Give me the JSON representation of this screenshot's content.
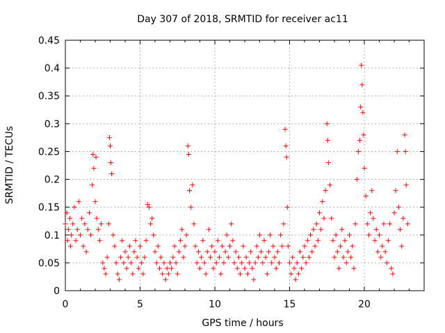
{
  "chart_data": {
    "type": "scatter",
    "title": "Day 307 of 2018, SRMTID for receiver ac11",
    "xlabel": "GPS time / hours",
    "ylabel": "SRMTID / TECUs",
    "xlim": [
      0,
      24
    ],
    "ylim": [
      0,
      0.45
    ],
    "x_ticks": [
      0,
      5,
      10,
      15,
      20
    ],
    "y_ticks": [
      0,
      0.05,
      0.1,
      0.15,
      0.2,
      0.25,
      0.3,
      0.35,
      0.4,
      0.45
    ],
    "x_tick_labels": [
      "0",
      "5",
      "10",
      "15",
      "20"
    ],
    "y_tick_labels": [
      "0",
      "0.05",
      "0.1",
      "0.15",
      "0.2",
      "0.25",
      "0.3",
      "0.35",
      "0.4",
      "0.45"
    ],
    "grid": true,
    "marker": "+",
    "color": "#ff0000",
    "series": [
      {
        "name": "SRMTID",
        "points": [
          [
            0.0,
            0.12
          ],
          [
            0.1,
            0.14
          ],
          [
            0.15,
            0.09
          ],
          [
            0.2,
            0.11
          ],
          [
            0.3,
            0.13
          ],
          [
            0.35,
            0.08
          ],
          [
            0.4,
            0.1
          ],
          [
            0.5,
            0.12
          ],
          [
            0.6,
            0.15
          ],
          [
            0.7,
            0.09
          ],
          [
            0.8,
            0.11
          ],
          [
            0.9,
            0.16
          ],
          [
            1.0,
            0.1
          ],
          [
            1.1,
            0.13
          ],
          [
            1.2,
            0.08
          ],
          [
            1.3,
            0.12
          ],
          [
            1.4,
            0.07
          ],
          [
            1.5,
            0.11
          ],
          [
            1.6,
            0.14
          ],
          [
            1.7,
            0.1
          ],
          [
            1.8,
            0.19
          ],
          [
            1.85,
            0.245
          ],
          [
            1.9,
            0.22
          ],
          [
            2.0,
            0.16
          ],
          [
            2.05,
            0.24
          ],
          [
            2.1,
            0.13
          ],
          [
            2.2,
            0.11
          ],
          [
            2.3,
            0.09
          ],
          [
            2.4,
            0.12
          ],
          [
            2.5,
            0.05
          ],
          [
            2.6,
            0.04
          ],
          [
            2.7,
            0.03
          ],
          [
            2.8,
            0.06
          ],
          [
            2.9,
            0.12
          ],
          [
            2.95,
            0.275
          ],
          [
            3.0,
            0.26
          ],
          [
            3.05,
            0.23
          ],
          [
            3.1,
            0.21
          ],
          [
            3.2,
            0.1
          ],
          [
            3.3,
            0.08
          ],
          [
            3.4,
            0.05
          ],
          [
            3.5,
            0.03
          ],
          [
            3.6,
            0.02
          ],
          [
            3.7,
            0.06
          ],
          [
            3.8,
            0.09
          ],
          [
            3.9,
            0.05
          ],
          [
            4.0,
            0.07
          ],
          [
            4.1,
            0.04
          ],
          [
            4.2,
            0.06
          ],
          [
            4.3,
            0.08
          ],
          [
            4.4,
            0.05
          ],
          [
            4.5,
            0.03
          ],
          [
            4.6,
            0.07
          ],
          [
            4.7,
            0.09
          ],
          [
            4.8,
            0.06
          ],
          [
            4.9,
            0.04
          ],
          [
            5.0,
            0.08
          ],
          [
            5.1,
            0.05
          ],
          [
            5.2,
            0.03
          ],
          [
            5.3,
            0.06
          ],
          [
            5.4,
            0.09
          ],
          [
            5.5,
            0.155
          ],
          [
            5.6,
            0.15
          ],
          [
            5.7,
            0.12
          ],
          [
            5.8,
            0.13
          ],
          [
            5.9,
            0.1
          ],
          [
            6.0,
            0.07
          ],
          [
            6.1,
            0.05
          ],
          [
            6.2,
            0.08
          ],
          [
            6.3,
            0.04
          ],
          [
            6.4,
            0.06
          ],
          [
            6.5,
            0.03
          ],
          [
            6.6,
            0.05
          ],
          [
            6.7,
            0.02
          ],
          [
            6.8,
            0.04
          ],
          [
            6.9,
            0.03
          ],
          [
            7.0,
            0.05
          ],
          [
            7.1,
            0.04
          ],
          [
            7.2,
            0.06
          ],
          [
            7.3,
            0.08
          ],
          [
            7.4,
            0.05
          ],
          [
            7.5,
            0.03
          ],
          [
            7.6,
            0.07
          ],
          [
            7.7,
            0.09
          ],
          [
            7.8,
            0.11
          ],
          [
            7.9,
            0.06
          ],
          [
            8.0,
            0.08
          ],
          [
            8.1,
            0.1
          ],
          [
            8.2,
            0.26
          ],
          [
            8.25,
            0.245
          ],
          [
            8.3,
            0.18
          ],
          [
            8.4,
            0.15
          ],
          [
            8.5,
            0.19
          ],
          [
            8.6,
            0.12
          ],
          [
            8.7,
            0.08
          ],
          [
            8.8,
            0.05
          ],
          [
            8.9,
            0.07
          ],
          [
            9.0,
            0.04
          ],
          [
            9.1,
            0.06
          ],
          [
            9.2,
            0.09
          ],
          [
            9.3,
            0.05
          ],
          [
            9.4,
            0.03
          ],
          [
            9.5,
            0.07
          ],
          [
            9.6,
            0.11
          ],
          [
            9.7,
            0.06
          ],
          [
            9.8,
            0.08
          ],
          [
            9.9,
            0.04
          ],
          [
            10.0,
            0.07
          ],
          [
            10.1,
            0.05
          ],
          [
            10.2,
            0.09
          ],
          [
            10.3,
            0.06
          ],
          [
            10.4,
            0.03
          ],
          [
            10.5,
            0.08
          ],
          [
            10.6,
            0.05
          ],
          [
            10.7,
            0.07
          ],
          [
            10.8,
            0.1
          ],
          [
            10.9,
            0.06
          ],
          [
            11.0,
            0.08
          ],
          [
            11.1,
            0.12
          ],
          [
            11.2,
            0.09
          ],
          [
            11.3,
            0.05
          ],
          [
            11.4,
            0.07
          ],
          [
            11.5,
            0.04
          ],
          [
            11.6,
            0.06
          ],
          [
            11.7,
            0.03
          ],
          [
            11.8,
            0.05
          ],
          [
            11.9,
            0.08
          ],
          [
            12.0,
            0.04
          ],
          [
            12.1,
            0.06
          ],
          [
            12.2,
            0.03
          ],
          [
            12.3,
            0.05
          ],
          [
            12.4,
            0.07
          ],
          [
            12.5,
            0.04
          ],
          [
            12.6,
            0.02
          ],
          [
            12.7,
            0.05
          ],
          [
            12.8,
            0.08
          ],
          [
            12.9,
            0.06
          ],
          [
            13.0,
            0.1
          ],
          [
            13.1,
            0.07
          ],
          [
            13.2,
            0.05
          ],
          [
            13.3,
            0.09
          ],
          [
            13.4,
            0.06
          ],
          [
            13.5,
            0.03
          ],
          [
            13.6,
            0.07
          ],
          [
            13.7,
            0.1
          ],
          [
            13.8,
            0.05
          ],
          [
            13.9,
            0.08
          ],
          [
            14.0,
            0.06
          ],
          [
            14.1,
            0.04
          ],
          [
            14.2,
            0.07
          ],
          [
            14.3,
            0.05
          ],
          [
            14.4,
            0.1
          ],
          [
            14.5,
            0.08
          ],
          [
            14.6,
            0.12
          ],
          [
            14.7,
            0.29
          ],
          [
            14.75,
            0.26
          ],
          [
            14.8,
            0.24
          ],
          [
            14.85,
            0.15
          ],
          [
            14.9,
            0.08
          ],
          [
            15.0,
            0.05
          ],
          [
            15.1,
            0.03
          ],
          [
            15.2,
            0.06
          ],
          [
            15.3,
            0.04
          ],
          [
            15.4,
            0.02
          ],
          [
            15.5,
            0.05
          ],
          [
            15.6,
            0.03
          ],
          [
            15.7,
            0.07
          ],
          [
            15.8,
            0.04
          ],
          [
            15.9,
            0.06
          ],
          [
            16.0,
            0.08
          ],
          [
            16.1,
            0.05
          ],
          [
            16.2,
            0.09
          ],
          [
            16.3,
            0.06
          ],
          [
            16.4,
            0.1
          ],
          [
            16.5,
            0.07
          ],
          [
            16.6,
            0.11
          ],
          [
            16.7,
            0.08
          ],
          [
            16.8,
            0.12
          ],
          [
            16.9,
            0.09
          ],
          [
            17.0,
            0.14
          ],
          [
            17.1,
            0.11
          ],
          [
            17.2,
            0.16
          ],
          [
            17.3,
            0.13
          ],
          [
            17.4,
            0.18
          ],
          [
            17.5,
            0.3
          ],
          [
            17.55,
            0.27
          ],
          [
            17.6,
            0.23
          ],
          [
            17.7,
            0.19
          ],
          [
            17.8,
            0.13
          ],
          [
            17.9,
            0.09
          ],
          [
            18.0,
            0.06
          ],
          [
            18.1,
            0.1
          ],
          [
            18.2,
            0.07
          ],
          [
            18.3,
            0.04
          ],
          [
            18.4,
            0.08
          ],
          [
            18.5,
            0.11
          ],
          [
            18.6,
            0.06
          ],
          [
            18.7,
            0.09
          ],
          [
            18.8,
            0.05
          ],
          [
            18.9,
            0.07
          ],
          [
            19.0,
            0.1
          ],
          [
            19.1,
            0.06
          ],
          [
            19.2,
            0.08
          ],
          [
            19.3,
            0.04
          ],
          [
            19.4,
            0.12
          ],
          [
            19.5,
            0.2
          ],
          [
            19.6,
            0.25
          ],
          [
            19.7,
            0.27
          ],
          [
            19.75,
            0.33
          ],
          [
            19.8,
            0.405
          ],
          [
            19.85,
            0.37
          ],
          [
            19.9,
            0.32
          ],
          [
            19.95,
            0.28
          ],
          [
            20.0,
            0.22
          ],
          [
            20.1,
            0.17
          ],
          [
            20.2,
            0.12
          ],
          [
            20.3,
            0.1
          ],
          [
            20.4,
            0.14
          ],
          [
            20.5,
            0.18
          ],
          [
            20.6,
            0.13
          ],
          [
            20.7,
            0.09
          ],
          [
            20.8,
            0.11
          ],
          [
            20.9,
            0.07
          ],
          [
            21.0,
            0.1
          ],
          [
            21.1,
            0.06
          ],
          [
            21.2,
            0.08
          ],
          [
            21.3,
            0.12
          ],
          [
            21.4,
            0.07
          ],
          [
            21.5,
            0.05
          ],
          [
            21.6,
            0.09
          ],
          [
            21.7,
            0.12
          ],
          [
            21.8,
            0.04
          ],
          [
            21.9,
            0.03
          ],
          [
            22.0,
            0.14
          ],
          [
            22.1,
            0.18
          ],
          [
            22.2,
            0.25
          ],
          [
            22.3,
            0.15
          ],
          [
            22.4,
            0.11
          ],
          [
            22.5,
            0.08
          ],
          [
            22.6,
            0.13
          ],
          [
            22.7,
            0.28
          ],
          [
            22.75,
            0.25
          ],
          [
            22.8,
            0.19
          ],
          [
            22.9,
            0.12
          ]
        ]
      }
    ]
  }
}
